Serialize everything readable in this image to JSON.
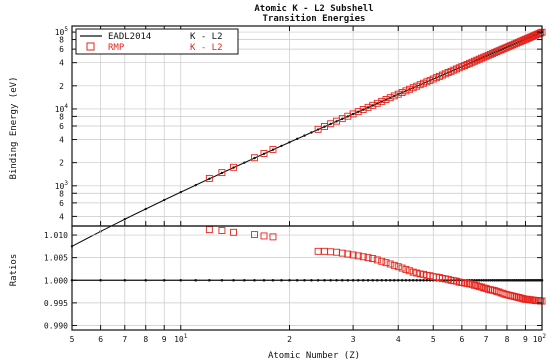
{
  "chart_data": [
    {
      "type": "line",
      "title": "Atomic K - L2 Subshell",
      "subtitle": "Transition Energies",
      "xlabel": "",
      "ylabel": "Binding Energy (eV)",
      "x_scale": "log",
      "y_scale": "log",
      "xlim": [
        5,
        100
      ],
      "ylim": [
        300,
        120000
      ],
      "grid": true,
      "legend_placement": "top-left",
      "x_ticks": [
        {
          "value": 5,
          "label": "5",
          "exp": ""
        },
        {
          "value": 6,
          "label": "6",
          "exp": ""
        },
        {
          "value": 7,
          "label": "7",
          "exp": ""
        },
        {
          "value": 8,
          "label": "8",
          "exp": ""
        },
        {
          "value": 9,
          "label": "9",
          "exp": ""
        },
        {
          "value": 10,
          "label": "10",
          "exp": "1"
        },
        {
          "value": 20,
          "label": "2",
          "exp": ""
        },
        {
          "value": 30,
          "label": "3",
          "exp": ""
        },
        {
          "value": 40,
          "label": "4",
          "exp": ""
        },
        {
          "value": 50,
          "label": "5",
          "exp": ""
        },
        {
          "value": 60,
          "label": "6",
          "exp": ""
        },
        {
          "value": 70,
          "label": "7",
          "exp": ""
        },
        {
          "value": 80,
          "label": "8",
          "exp": ""
        },
        {
          "value": 90,
          "label": "9",
          "exp": ""
        },
        {
          "value": 100,
          "label": "10",
          "exp": "2"
        }
      ],
      "y_ticks": [
        {
          "value": 400,
          "label": "4",
          "exp": ""
        },
        {
          "value": 600,
          "label": "6",
          "exp": ""
        },
        {
          "value": 800,
          "label": "8",
          "exp": ""
        },
        {
          "value": 1000,
          "label": "10",
          "exp": "3"
        },
        {
          "value": 2000,
          "label": "2",
          "exp": ""
        },
        {
          "value": 4000,
          "label": "4",
          "exp": ""
        },
        {
          "value": 6000,
          "label": "6",
          "exp": ""
        },
        {
          "value": 8000,
          "label": "8",
          "exp": ""
        },
        {
          "value": 10000,
          "label": "10",
          "exp": "4"
        },
        {
          "value": 20000,
          "label": "2",
          "exp": ""
        },
        {
          "value": 40000,
          "label": "4",
          "exp": ""
        },
        {
          "value": 60000,
          "label": "6",
          "exp": ""
        },
        {
          "value": 80000,
          "label": "8",
          "exp": ""
        },
        {
          "value": 100000,
          "label": "10",
          "exp": "5"
        }
      ],
      "series": [
        {
          "name": "EADL2014 K - L2",
          "color": "#111111",
          "marker": "line-with-dots",
          "law": "E = 10.2 * (Z - 1)^2 eV",
          "z_range": [
            5,
            100
          ],
          "z_step": 1
        },
        {
          "name": "RMP K - L2",
          "color": "#e8231a",
          "marker": "open-square",
          "z": [
            12,
            13,
            14,
            16,
            17,
            18,
            24,
            25,
            26,
            27,
            28,
            29,
            30,
            31,
            32,
            33,
            34,
            35,
            36,
            37,
            38,
            39,
            40,
            41,
            42,
            43,
            44,
            45,
            46,
            47,
            48,
            49,
            50,
            51,
            52,
            53,
            54,
            55,
            56,
            57,
            58,
            59,
            60,
            61,
            62,
            63,
            64,
            65,
            66,
            67,
            68,
            69,
            70,
            71,
            72,
            73,
            74,
            75,
            76,
            77,
            78,
            79,
            80,
            81,
            82,
            83,
            84,
            85,
            86,
            87,
            88,
            89,
            90,
            91,
            92,
            93,
            94,
            95,
            96,
            97,
            98,
            99,
            100
          ]
        }
      ],
      "legend": [
        {
          "label": "EADL2014",
          "transition": "K - L2",
          "color": "#111111",
          "marker": "line"
        },
        {
          "label": "RMP",
          "transition": "K - L2",
          "color": "#e8231a",
          "marker": "square"
        }
      ]
    },
    {
      "type": "scatter",
      "xlabel": "Atomic Number (Z)",
      "ylabel": "Ratios",
      "x_scale": "log",
      "xlim": [
        5,
        100
      ],
      "ylim": [
        0.989,
        1.012
      ],
      "grid": true,
      "y_ticks": [
        {
          "value": 0.99,
          "label": "0.990"
        },
        {
          "value": 0.995,
          "label": "0.995"
        },
        {
          "value": 1.0,
          "label": "1.000"
        },
        {
          "value": 1.005,
          "label": "1.005"
        },
        {
          "value": 1.01,
          "label": "1.010"
        }
      ],
      "series": [
        {
          "name": "EADL2014 K - L2",
          "color": "#111111",
          "marker": "dot",
          "z_range": [
            5,
            100
          ],
          "value": 1.0
        },
        {
          "name": "RMP K - L2",
          "color": "#e8231a",
          "marker": "open-square",
          "z": [
            12,
            13,
            14,
            16,
            17,
            18,
            24,
            25,
            26,
            27,
            28,
            29,
            30,
            31,
            32,
            33,
            34,
            35,
            36,
            37,
            38,
            39,
            40,
            41,
            42,
            43,
            44,
            45,
            46,
            47,
            48,
            49,
            50,
            51,
            52,
            53,
            54,
            55,
            56,
            57,
            58,
            59,
            60,
            61,
            62,
            63,
            64,
            65,
            66,
            67,
            68,
            69,
            70,
            71,
            72,
            73,
            74,
            75,
            76,
            77,
            78,
            79,
            80,
            81,
            82,
            83,
            84,
            85,
            86,
            87,
            88,
            89,
            90,
            91,
            92,
            93,
            94,
            95,
            96,
            97,
            98,
            99,
            100
          ],
          "ratio": [
            1.0112,
            1.011,
            1.0106,
            1.0101,
            1.0098,
            1.0096,
            1.0064,
            1.0064,
            1.0063,
            1.0062,
            1.006,
            1.0058,
            1.0056,
            1.0054,
            1.0052,
            1.005,
            1.0048,
            1.0045,
            1.0042,
            1.0039,
            1.0036,
            1.0033,
            1.003,
            1.0027,
            1.0024,
            1.0021,
            1.0018,
            1.0016,
            1.0014,
            1.0013,
            1.0011,
            1.001,
            1.0008,
            1.0007,
            1.0006,
            1.0004,
            1.0003,
            1.0002,
            1.0,
            0.9999,
            0.9998,
            0.9996,
            0.9995,
            0.9994,
            0.9993,
            0.9992,
            0.9991,
            0.9989,
            0.9988,
            0.9986,
            0.9985,
            0.9983,
            0.9982,
            0.998,
            0.9979,
            0.9978,
            0.9977,
            0.9975,
            0.9974,
            0.9972,
            0.9971,
            0.9969,
            0.9968,
            0.9967,
            0.9966,
            0.9965,
            0.9964,
            0.9963,
            0.9962,
            0.9961,
            0.996,
            0.9959,
            0.9958,
            0.9958,
            0.9957,
            0.9957,
            0.9956,
            0.9956,
            0.9955,
            0.9955,
            0.9955,
            0.9954,
            0.9954
          ]
        }
      ]
    }
  ]
}
